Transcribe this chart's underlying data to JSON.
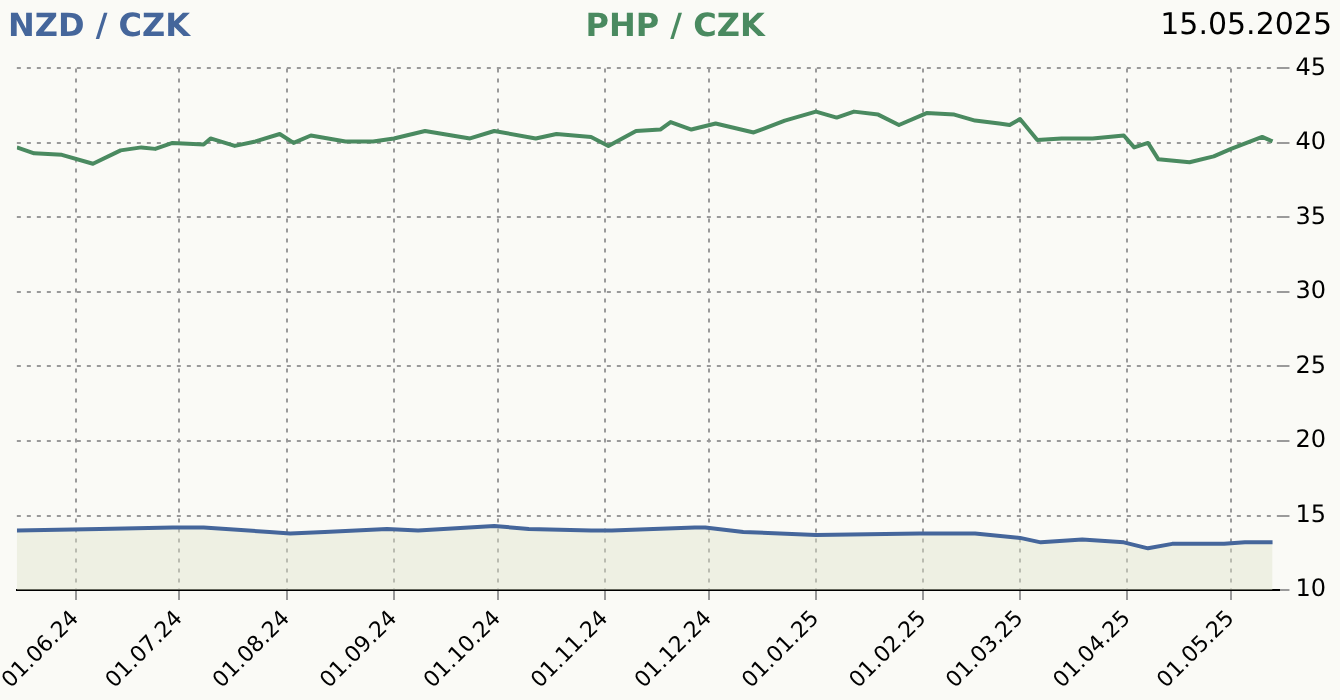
{
  "chart_data": {
    "type": "line",
    "subtitle": "15.05.2025",
    "legend": "top",
    "grid": true,
    "marker": "none",
    "line_style": "solid",
    "xlim": [
      "2024-05-15",
      "2025-05-15"
    ],
    "xticks": [
      {
        "value": "2024-06-01",
        "label": "01.06.24"
      },
      {
        "value": "2024-07-01",
        "label": "01.07.24"
      },
      {
        "value": "2024-08-01",
        "label": "01.08.24"
      },
      {
        "value": "2024-09-01",
        "label": "01.09.24"
      },
      {
        "value": "2024-10-01",
        "label": "01.10.24"
      },
      {
        "value": "2024-11-01",
        "label": "01.11.24"
      },
      {
        "value": "2024-12-01",
        "label": "01.12.24"
      },
      {
        "value": "2025-01-01",
        "label": "01.01.25"
      },
      {
        "value": "2025-02-01",
        "label": "01.02.25"
      },
      {
        "value": "2025-03-01",
        "label": "01.03.25"
      },
      {
        "value": "2025-04-01",
        "label": "01.04.25"
      },
      {
        "value": "2025-05-01",
        "label": "01.05.25"
      }
    ],
    "ylim": [
      10,
      45
    ],
    "yticks": [
      10,
      15,
      20,
      25,
      30,
      35,
      40,
      45
    ],
    "series": [
      {
        "name": "NZD / CZK",
        "type": "area",
        "color": "#45669b",
        "x": [
          "2024-05-15",
          "2024-06-08",
          "2024-06-29",
          "2024-07-08",
          "2024-07-27",
          "2024-08-02",
          "2024-08-12",
          "2024-08-30",
          "2024-09-08",
          "2024-09-30",
          "2024-10-10",
          "2024-10-28",
          "2024-11-03",
          "2024-11-27",
          "2024-11-30",
          "2024-12-11",
          "2025-01-01",
          "2025-01-31",
          "2025-02-16",
          "2025-03-01",
          "2025-03-07",
          "2025-03-19",
          "2025-03-31",
          "2025-04-07",
          "2025-04-14",
          "2025-04-29",
          "2025-05-05",
          "2025-05-13"
        ],
        "values": [
          14.0,
          14.1,
          14.2,
          14.2,
          13.9,
          13.8,
          13.9,
          14.1,
          14.0,
          14.3,
          14.1,
          14.0,
          14.0,
          14.2,
          14.2,
          13.9,
          13.7,
          13.8,
          13.8,
          13.5,
          13.2,
          13.4,
          13.2,
          12.8,
          13.1,
          13.1,
          13.2,
          13.2
        ]
      },
      {
        "name": "PHP / CZK",
        "color": "#4a8a60",
        "x": [
          "2024-05-15",
          "2024-05-20",
          "2024-05-28",
          "2024-06-06",
          "2024-06-14",
          "2024-06-20",
          "2024-06-24",
          "2024-06-29",
          "2024-07-08",
          "2024-07-10",
          "2024-07-17",
          "2024-07-23",
          "2024-07-30",
          "2024-08-03",
          "2024-08-08",
          "2024-08-18",
          "2024-08-26",
          "2024-09-01",
          "2024-09-10",
          "2024-09-23",
          "2024-09-30",
          "2024-10-12",
          "2024-10-18",
          "2024-10-28",
          "2024-11-02",
          "2024-11-10",
          "2024-11-17",
          "2024-11-20",
          "2024-11-26",
          "2024-12-03",
          "2024-12-14",
          "2024-12-23",
          "2025-01-01",
          "2025-01-07",
          "2025-01-12",
          "2025-01-19",
          "2025-01-25",
          "2025-02-02",
          "2025-02-10",
          "2025-02-16",
          "2025-02-23",
          "2025-02-26",
          "2025-03-01",
          "2025-03-06",
          "2025-03-13",
          "2025-03-22",
          "2025-03-31",
          "2025-04-03",
          "2025-04-07",
          "2025-04-10",
          "2025-04-19",
          "2025-04-26",
          "2025-05-01",
          "2025-05-10",
          "2025-05-13"
        ],
        "values": [
          39.7,
          39.3,
          39.2,
          38.6,
          39.5,
          39.7,
          39.6,
          40.0,
          39.9,
          40.3,
          39.8,
          40.1,
          40.6,
          40.0,
          40.5,
          40.1,
          40.1,
          40.3,
          40.8,
          40.3,
          40.8,
          40.3,
          40.6,
          40.4,
          39.8,
          40.8,
          40.9,
          41.4,
          40.9,
          41.3,
          40.7,
          41.5,
          42.1,
          41.7,
          42.1,
          41.9,
          41.2,
          42.0,
          41.9,
          41.5,
          41.3,
          41.2,
          41.6,
          40.2,
          40.3,
          40.3,
          40.5,
          39.7,
          40.0,
          38.9,
          38.7,
          39.1,
          39.6,
          40.4,
          40.1
        ]
      }
    ]
  }
}
